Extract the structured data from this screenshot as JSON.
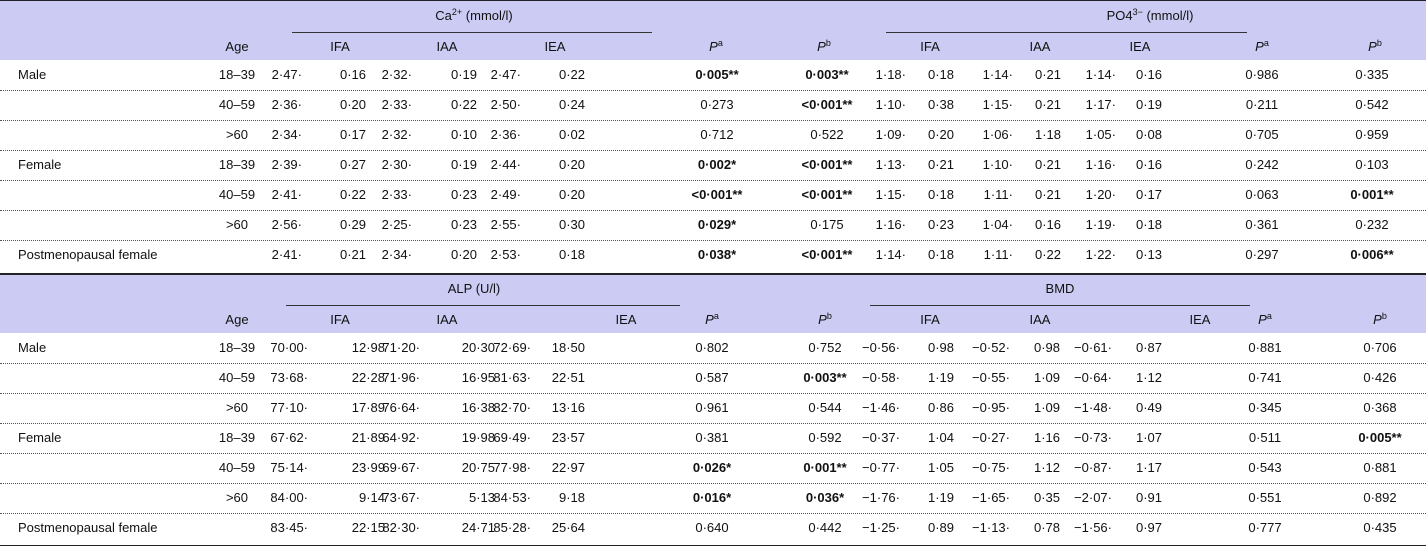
{
  "sections": [
    {
      "group_titles": [
        {
          "text": "Ca",
          "sup": "2+",
          "rest": " (mmol/l)"
        },
        {
          "text": "PO4",
          "sup": "3−",
          "rest": " (mmol/l)"
        }
      ],
      "age_header": "Age",
      "subheaders": [
        "IFA",
        "IAA",
        "IEA",
        {
          "text": "P",
          "sup": "a"
        },
        {
          "text": "P",
          "sup": "b"
        },
        "IFA",
        "IAA",
        "IEA",
        {
          "text": "P",
          "sup": "a"
        },
        {
          "text": "P",
          "sup": "b"
        }
      ],
      "rows": [
        {
          "label": "Male",
          "age": "18–39",
          "values": [
            "2·47·",
            "0·16",
            "2·32·",
            "0·19",
            "2·47·",
            "0·22",
            "0·005**",
            "0·003**",
            "1·18·",
            "0·18",
            "1·14·",
            "0·21",
            "1·14·",
            "0·16",
            "0·986",
            "0·335"
          ]
        },
        {
          "label": null,
          "age": "40–59",
          "values": [
            "2·36·",
            "0·20",
            "2·33·",
            "0·22",
            "2·50·",
            "0·24",
            "0·273",
            "<0·001**",
            "1·10·",
            "0·38",
            "1·15·",
            "0·21",
            "1·17·",
            "0·19",
            "0·211",
            "0·542"
          ]
        },
        {
          "label": null,
          "age": ">60",
          "values": [
            "2·34·",
            "0·17",
            "2·32·",
            "0·10",
            "2·36·",
            "0·02",
            "0·712",
            "0·522",
            "1·09·",
            "0·20",
            "1·06·",
            "1·18",
            "1·05·",
            "0·08",
            "0·705",
            "0·959"
          ]
        },
        {
          "label": "Female",
          "age": "18–39",
          "values": [
            "2·39·",
            "0·27",
            "2·30·",
            "0·19",
            "2·44·",
            "0·20",
            "0·002*",
            "<0·001**",
            "1·13·",
            "0·21",
            "1·10·",
            "0·21",
            "1·16·",
            "0·16",
            "0·242",
            "0·103"
          ]
        },
        {
          "label": null,
          "age": "40–59",
          "values": [
            "2·41·",
            "0·22",
            "2·33·",
            "0·23",
            "2·49·",
            "0·20",
            "<0·001**",
            "<0·001**",
            "1·15·",
            "0·18",
            "1·11·",
            "0·21",
            "1·20·",
            "0·17",
            "0·063",
            "0·001**"
          ]
        },
        {
          "label": null,
          "age": ">60",
          "values": [
            "2·56·",
            "0·29",
            "2·25·",
            "0·23",
            "2·55·",
            "0·30",
            "0·029*",
            "0·175",
            "1·16·",
            "0·23",
            "1·04·",
            "0·16",
            "1·19·",
            "0·18",
            "0·361",
            "0·232"
          ]
        },
        {
          "label": "Postmenopausal female",
          "age": null,
          "values": [
            "2·41·",
            "0·21",
            "2·34·",
            "0·20",
            "2·53·",
            "0·18",
            "0·038*",
            "<0·001**",
            "1·14·",
            "0·18",
            "1·11·",
            "0·22",
            "1·22·",
            "0·13",
            "0·297",
            "0·006**"
          ]
        }
      ]
    },
    {
      "group_titles": [
        {
          "text": "ALP (U/l)"
        },
        {
          "text": "BMD"
        }
      ],
      "age_header": "Age",
      "subheaders": [
        "IFA",
        "IAA",
        "IEA",
        {
          "text": "P",
          "sup": "a"
        },
        {
          "text": "P",
          "sup": "b"
        },
        "IFA",
        "IAA",
        "IEA",
        {
          "text": "P",
          "sup": "a"
        },
        {
          "text": "P",
          "sup": "b"
        }
      ],
      "rows": [
        {
          "label": "Male",
          "age": "18–39",
          "values": [
            "70·00·",
            "12·98",
            "71·20·",
            "20·30",
            "72·69·",
            "18·50",
            "0·802",
            "0·752",
            "−0·56·",
            "0·98",
            "−0·52·",
            "0·98",
            "−0·61·",
            "0·87",
            "0·881",
            "0·706"
          ]
        },
        {
          "label": null,
          "age": "40–59",
          "values": [
            "73·68·",
            "22·28",
            "71·96·",
            "16·95",
            "81·63·",
            "22·51",
            "0·587",
            "0·003**",
            "−0·58·",
            "1·19",
            "−0·55·",
            "1·09",
            "−0·64·",
            "1·12",
            "0·741",
            "0·426"
          ]
        },
        {
          "label": null,
          "age": ">60",
          "values": [
            "77·10·",
            "17·89",
            "76·64·",
            "16·38",
            "82·70·",
            "13·16",
            "0·961",
            "0·544",
            "−1·46·",
            "0·86",
            "−0·95·",
            "1·09",
            "−1·48·",
            "0·49",
            "0·345",
            "0·368"
          ]
        },
        {
          "label": "Female",
          "age": "18–39",
          "values": [
            "67·62·",
            "21·89",
            "64·92·",
            "19·98",
            "69·49·",
            "23·57",
            "0·381",
            "0·592",
            "−0·37·",
            "1·04",
            "−0·27·",
            "1·16",
            "−0·73·",
            "1·07",
            "0·511",
            "0·005**"
          ]
        },
        {
          "label": null,
          "age": "40–59",
          "values": [
            "75·14·",
            "23·99",
            "69·67·",
            "20·75",
            "77·98·",
            "22·97",
            "0·026*",
            "0·001**",
            "−0·77·",
            "1·05",
            "−0·75·",
            "1·12",
            "−0·87·",
            "1·17",
            "0·543",
            "0·881"
          ]
        },
        {
          "label": null,
          "age": ">60",
          "values": [
            "84·00·",
            "9·14",
            "73·67·",
            "5·13",
            "84·53·",
            "9·18",
            "0·016*",
            "0·036*",
            "−1·76·",
            "1·19",
            "−1·65·",
            "0·35",
            "−2·07·",
            "0·91",
            "0·551",
            "0·892"
          ]
        },
        {
          "label": "Postmenopausal female",
          "age": null,
          "values": [
            "83·45·",
            "22·15",
            "82·30·",
            "24·71",
            "85·28·",
            "25·64",
            "0·640",
            "0·442",
            "−1·25·",
            "0·89",
            "−1·13·",
            "0·78",
            "−1·56·",
            "0·97",
            "0·777",
            "0·435"
          ]
        }
      ]
    }
  ]
}
